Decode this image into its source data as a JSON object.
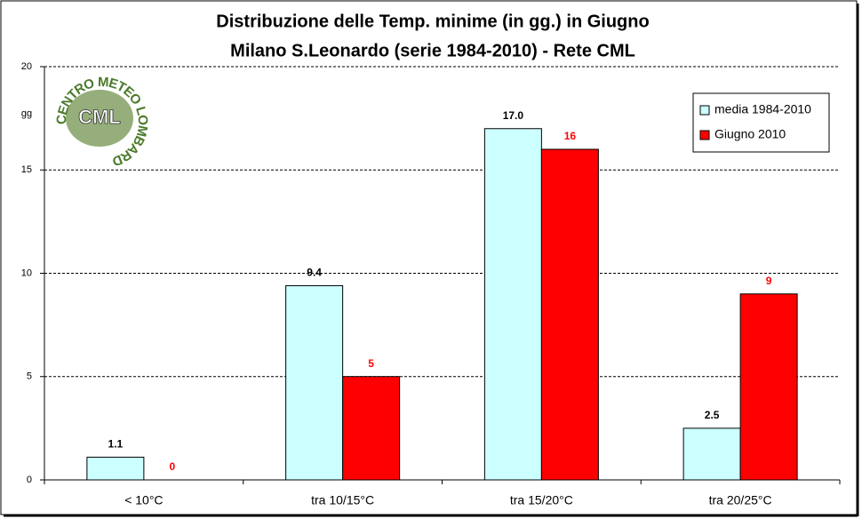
{
  "chart_data": {
    "type": "bar",
    "title": "Distribuzione delle Temp. minime (in gg.) in Giugno",
    "subtitle": "Milano S.Leonardo (serie 1984-2010) - Rete CML",
    "y_label": "gg",
    "logo_ring": "CENTRO METEO LOMBARDO",
    "logo_text": "CML",
    "categories": [
      "< 10°C",
      "tra 10/15°C",
      "tra 15/20°C",
      "tra 20/25°C"
    ],
    "series": [
      {
        "name": "media 1984-2010",
        "color": "#ccffff",
        "label_color": "#000000",
        "values": [
          1.1,
          9.4,
          17.0,
          2.5
        ],
        "value_labels": [
          "1.1",
          "9.4",
          "17.0",
          "2.5"
        ]
      },
      {
        "name": "Giugno 2010",
        "color": "#ff0000",
        "label_color": "#ff0000",
        "values": [
          0,
          5,
          16,
          9
        ]
      }
    ],
    "ylim": [
      0,
      20
    ],
    "yticks": [
      0,
      5,
      10,
      15,
      20
    ],
    "grid": true,
    "legend": "upper right"
  }
}
